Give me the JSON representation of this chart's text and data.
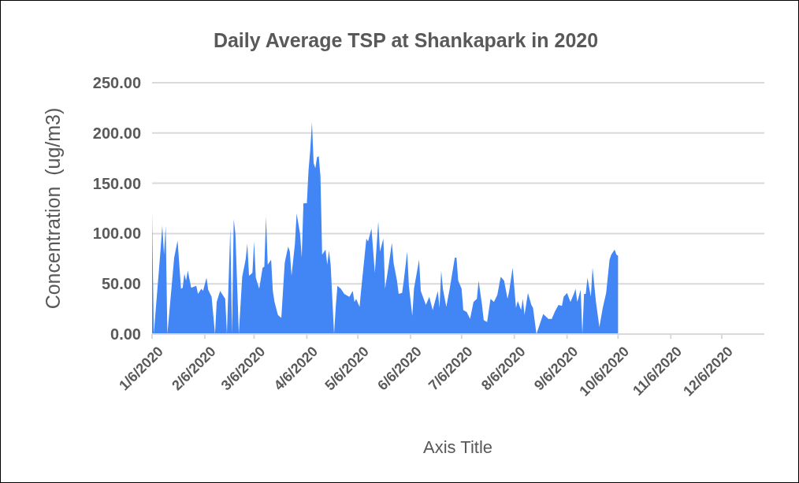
{
  "chart_data": {
    "type": "area",
    "title": "Daily Average TSP at Shankapark in 2020",
    "xlabel": "Axis Title",
    "ylabel": "Concentration  (ug/m3)",
    "x": [
      "2020-01-06",
      "2020-01-07",
      "2020-01-11",
      "2020-01-12",
      "2020-01-13",
      "2020-01-14",
      "2020-01-15",
      "2020-01-19",
      "2020-01-21",
      "2020-01-23",
      "2020-01-24",
      "2020-01-25",
      "2020-01-26",
      "2020-01-27",
      "2020-01-29",
      "2020-02-01",
      "2020-02-02",
      "2020-02-04",
      "2020-02-05",
      "2020-02-07",
      "2020-02-08",
      "2020-02-10",
      "2020-02-12",
      "2020-02-13",
      "2020-02-15",
      "2020-02-18",
      "2020-02-19",
      "2020-02-21",
      "2020-02-22",
      "2020-02-23",
      "2020-02-24",
      "2020-02-26",
      "2020-02-28",
      "2020-03-01",
      "2020-03-02",
      "2020-03-03",
      "2020-03-05",
      "2020-03-06",
      "2020-03-07",
      "2020-03-09",
      "2020-03-11",
      "2020-03-12",
      "2020-03-13",
      "2020-03-14",
      "2020-03-16",
      "2020-03-17",
      "2020-03-18",
      "2020-03-20",
      "2020-03-22",
      "2020-03-24",
      "2020-03-26",
      "2020-03-27",
      "2020-03-28",
      "2020-03-30",
      "2020-03-31",
      "2020-04-02",
      "2020-04-03",
      "2020-04-04",
      "2020-04-06",
      "2020-04-07",
      "2020-04-08",
      "2020-04-09",
      "2020-04-10",
      "2020-04-11",
      "2020-04-12",
      "2020-04-13",
      "2020-04-14",
      "2020-04-15",
      "2020-04-17",
      "2020-04-18",
      "2020-04-19",
      "2020-04-20",
      "2020-04-22",
      "2020-04-23",
      "2020-04-24",
      "2020-04-26",
      "2020-04-28",
      "2020-04-29",
      "2020-05-01",
      "2020-05-03",
      "2020-05-04",
      "2020-05-05",
      "2020-05-07",
      "2020-05-08",
      "2020-05-11",
      "2020-05-12",
      "2020-05-14",
      "2020-05-16",
      "2020-05-18",
      "2020-05-19",
      "2020-05-21",
      "2020-05-22",
      "2020-05-24",
      "2020-05-26",
      "2020-05-27",
      "2020-05-29",
      "2020-05-30",
      "2020-06-01",
      "2020-06-02",
      "2020-06-04",
      "2020-06-05",
      "2020-06-07",
      "2020-06-08",
      "2020-06-11",
      "2020-06-12",
      "2020-06-15",
      "2020-06-17",
      "2020-06-19",
      "2020-06-22",
      "2020-06-23",
      "2020-06-24",
      "2020-06-25",
      "2020-06-27",
      "2020-06-29",
      "2020-07-02",
      "2020-07-03",
      "2020-07-04",
      "2020-07-06",
      "2020-07-07",
      "2020-07-09",
      "2020-07-11",
      "2020-07-13",
      "2020-07-15",
      "2020-07-16",
      "2020-07-18",
      "2020-07-19",
      "2020-07-21",
      "2020-07-23",
      "2020-07-25",
      "2020-07-27",
      "2020-07-29",
      "2020-07-31",
      "2020-08-02",
      "2020-08-03",
      "2020-08-05",
      "2020-08-07",
      "2020-08-08",
      "2020-08-10",
      "2020-08-11",
      "2020-08-12",
      "2020-08-14",
      "2020-08-16",
      "2020-08-17",
      "2020-08-19",
      "2020-08-23",
      "2020-08-26",
      "2020-08-28",
      "2020-08-30",
      "2020-09-01",
      "2020-09-03",
      "2020-09-04",
      "2020-09-06",
      "2020-09-08",
      "2020-09-10",
      "2020-09-11",
      "2020-09-12",
      "2020-09-14",
      "2020-09-15",
      "2020-09-16",
      "2020-09-17",
      "2020-09-18",
      "2020-09-20",
      "2020-09-21",
      "2020-09-23",
      "2020-09-25",
      "2020-09-27",
      "2020-09-29",
      "2020-10-01",
      "2020-10-02",
      "2020-10-04",
      "2020-10-05",
      "2020-10-06"
    ],
    "series": [
      {
        "color": "#4285f4",
        "values": [
          122,
          0,
          84,
          108,
          79,
          108,
          0,
          76,
          93,
          45,
          46,
          60,
          53,
          63,
          46,
          48,
          40,
          45,
          43,
          56,
          44,
          37,
          0,
          32,
          43,
          35,
          0,
          105,
          0,
          114,
          100,
          0,
          57,
          74,
          90,
          58,
          61,
          92,
          56,
          45,
          66,
          67,
          117,
          69,
          74,
          43,
          32,
          19,
          16,
          71,
          87,
          82,
          58,
          90,
          120,
          100,
          76,
          130,
          130,
          163,
          183,
          211,
          170,
          165,
          176,
          177,
          157,
          79,
          84,
          69,
          83,
          69,
          0,
          27,
          48,
          45,
          40,
          39,
          37,
          43,
          32,
          35,
          27,
          45,
          95,
          92,
          105,
          61,
          112,
          82,
          95,
          45,
          67,
          91,
          71,
          53,
          40,
          41,
          53,
          82,
          48,
          18,
          45,
          74,
          43,
          29,
          37,
          24,
          43,
          26,
          63,
          45,
          27,
          45,
          76,
          76,
          53,
          45,
          24,
          22,
          15,
          32,
          35,
          53,
          29,
          14,
          12,
          35,
          32,
          39,
          57,
          53,
          35,
          43,
          66,
          26,
          33,
          24,
          35,
          19,
          41,
          29,
          26,
          0,
          20,
          15,
          15,
          23,
          29,
          28,
          37,
          41,
          32,
          40,
          45,
          32,
          44,
          0,
          40,
          40,
          56,
          37,
          66,
          32,
          7,
          26,
          41,
          74,
          79,
          84,
          79,
          78
        ]
      }
    ],
    "xlim": [
      "2020-01-06",
      "2020-12-31"
    ],
    "xticks": [
      {
        "value": "2020-01-06",
        "label": "1/6/2020"
      },
      {
        "value": "2020-02-06",
        "label": "2/6/2020"
      },
      {
        "value": "2020-03-06",
        "label": "3/6/2020"
      },
      {
        "value": "2020-04-06",
        "label": "4/6/2020"
      },
      {
        "value": "2020-05-06",
        "label": "5/6/2020"
      },
      {
        "value": "2020-06-06",
        "label": "6/6/2020"
      },
      {
        "value": "2020-07-06",
        "label": "7/6/2020"
      },
      {
        "value": "2020-08-06",
        "label": "8/6/2020"
      },
      {
        "value": "2020-09-06",
        "label": "9/6/2020"
      },
      {
        "value": "2020-10-06",
        "label": "10/6/2020"
      },
      {
        "value": "2020-11-06",
        "label": "11/6/2020"
      },
      {
        "value": "2020-12-06",
        "label": "12/6/2020"
      }
    ],
    "ylim": [
      0,
      250
    ],
    "yticks": [
      {
        "value": 0,
        "label": "0.00"
      },
      {
        "value": 50,
        "label": "50.00"
      },
      {
        "value": 100,
        "label": "100.00"
      },
      {
        "value": 150,
        "label": "150.00"
      },
      {
        "value": 200,
        "label": "200.00"
      },
      {
        "value": 250,
        "label": "250.00"
      }
    ],
    "grid": "y"
  }
}
